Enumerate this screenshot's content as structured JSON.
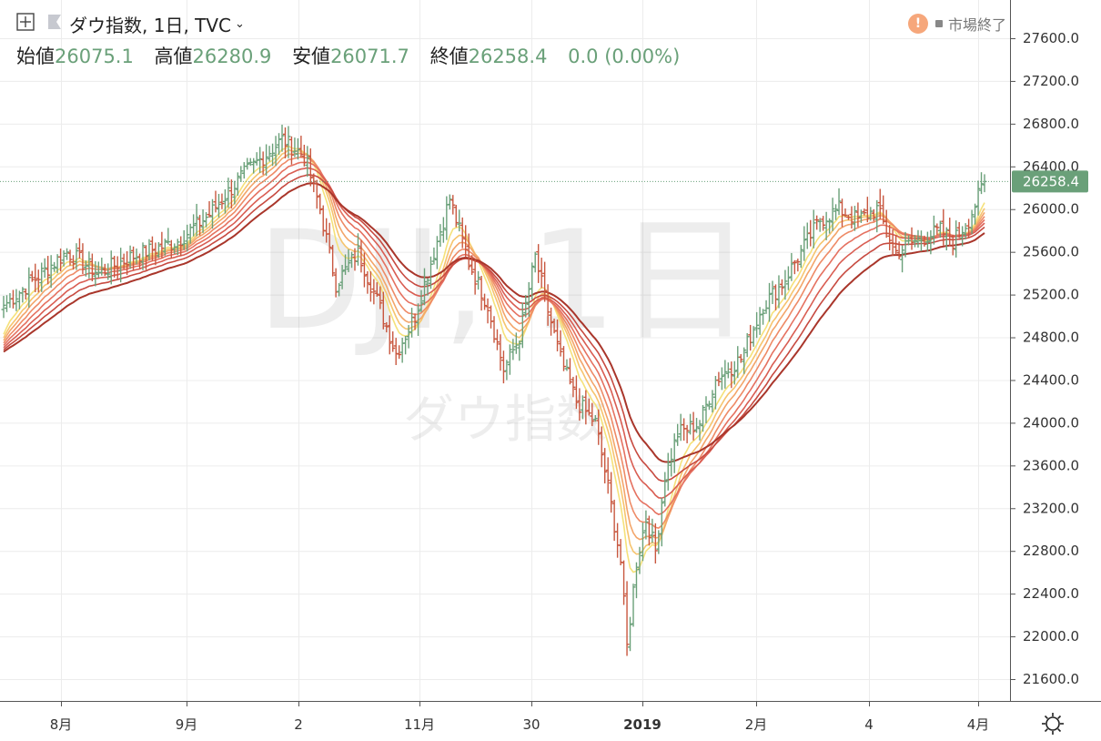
{
  "header": {
    "symbol_title": "ダウ指数, 1日, TVC",
    "ohlc": {
      "open_label": "始値",
      "open_value": "26075.1",
      "high_label": "高値",
      "high_value": "26280.9",
      "low_label": "安値",
      "low_value": "26071.7",
      "close_label": "終値",
      "close_value": "26258.4",
      "change": "0.0 (0.00%)"
    },
    "market_status": "市場終了",
    "warning_glyph": "!"
  },
  "watermark": {
    "main": "DJI, 1日",
    "sub": "ダウ指数"
  },
  "price_tag": "26258.4",
  "colors": {
    "up": "#6aa079",
    "down": "#c8573f",
    "price_tag_bg": "#6aa079",
    "ribbon": [
      "#f5e17a",
      "#f6c46e",
      "#f3a56a",
      "#ee8a66",
      "#e57160",
      "#d95d52",
      "#c74a40",
      "#a9362b"
    ]
  },
  "icons": {
    "toolbar": "crosshair-plus-icon",
    "flag": "flag-icon",
    "chevron": "chevron-down-icon",
    "settings": "gear-icon"
  },
  "chart_data": {
    "type": "candlestick",
    "ylim": [
      21400,
      27900
    ],
    "y_ticks": [
      "21600.0",
      "22000.0",
      "22400.0",
      "22800.0",
      "23200.0",
      "23600.0",
      "24000.0",
      "24400.0",
      "24800.0",
      "25200.0",
      "25600.0",
      "26000.0",
      "26400.0",
      "26800.0",
      "27200.0",
      "27600.0"
    ],
    "x_ticks": [
      "8月",
      "9月",
      "2",
      "11月",
      "30",
      "2019",
      "2月",
      "4",
      "4月"
    ],
    "bold_x_tick": "2019",
    "last_close": 26258.4,
    "close_path": [
      {
        "i": 0,
        "c": 25100
      },
      {
        "i": 10,
        "c": 25350
      },
      {
        "i": 20,
        "c": 25600
      },
      {
        "i": 30,
        "c": 25400
      },
      {
        "i": 40,
        "c": 25550
      },
      {
        "i": 55,
        "c": 25700
      },
      {
        "i": 65,
        "c": 25950
      },
      {
        "i": 75,
        "c": 26300
      },
      {
        "i": 88,
        "c": 26650
      },
      {
        "i": 95,
        "c": 26500
      },
      {
        "i": 100,
        "c": 26000
      },
      {
        "i": 105,
        "c": 25300
      },
      {
        "i": 112,
        "c": 25600
      },
      {
        "i": 118,
        "c": 25150
      },
      {
        "i": 124,
        "c": 24650
      },
      {
        "i": 130,
        "c": 25000
      },
      {
        "i": 136,
        "c": 25600
      },
      {
        "i": 141,
        "c": 26100
      },
      {
        "i": 147,
        "c": 25500
      },
      {
        "i": 153,
        "c": 25100
      },
      {
        "i": 158,
        "c": 24500
      },
      {
        "i": 163,
        "c": 24800
      },
      {
        "i": 168,
        "c": 25550
      },
      {
        "i": 172,
        "c": 25050
      },
      {
        "i": 176,
        "c": 24600
      },
      {
        "i": 181,
        "c": 24200
      },
      {
        "i": 187,
        "c": 24000
      },
      {
        "i": 191,
        "c": 23400
      },
      {
        "i": 195,
        "c": 22700
      },
      {
        "i": 197,
        "c": 21900
      },
      {
        "i": 200,
        "c": 22700
      },
      {
        "i": 203,
        "c": 23100
      },
      {
        "i": 206,
        "c": 22800
      },
      {
        "i": 209,
        "c": 23500
      },
      {
        "i": 213,
        "c": 23900
      },
      {
        "i": 220,
        "c": 24000
      },
      {
        "i": 225,
        "c": 24400
      },
      {
        "i": 233,
        "c": 24600
      },
      {
        "i": 240,
        "c": 25100
      },
      {
        "i": 246,
        "c": 25300
      },
      {
        "i": 252,
        "c": 25600
      },
      {
        "i": 258,
        "c": 25900
      },
      {
        "i": 264,
        "c": 26000
      },
      {
        "i": 270,
        "c": 25900
      },
      {
        "i": 276,
        "c": 26000
      },
      {
        "i": 282,
        "c": 25600
      },
      {
        "i": 288,
        "c": 25700
      },
      {
        "i": 296,
        "c": 25800
      },
      {
        "i": 300,
        "c": 25700
      },
      {
        "i": 305,
        "c": 25900
      },
      {
        "i": 310,
        "c": 26258.4
      }
    ],
    "ribbon_periods": [
      8,
      11,
      14,
      18,
      23,
      29,
      36,
      45
    ]
  }
}
